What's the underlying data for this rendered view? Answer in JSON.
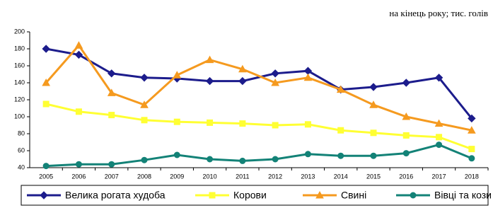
{
  "chart_data": {
    "type": "line",
    "subtitle": "на кінець року; тис. голів",
    "categories": [
      "2005",
      "2006",
      "2007",
      "2008",
      "2009",
      "2010",
      "2011",
      "2012",
      "2013",
      "2014",
      "2015",
      "2016",
      "2017",
      "2018"
    ],
    "ylim": [
      40,
      200
    ],
    "yticks": [
      40,
      60,
      80,
      100,
      120,
      140,
      160,
      180,
      200
    ],
    "grid": false,
    "series": [
      {
        "name": "Велика рогата худоба",
        "color": "#1c1c8c",
        "marker": "diamond",
        "values": [
          180,
          173,
          151,
          146,
          145,
          142,
          142,
          151,
          154,
          132,
          135,
          140,
          146,
          98
        ]
      },
      {
        "name": "Корови",
        "color": "#ffff33",
        "marker": "square",
        "values": [
          115,
          106,
          102,
          96,
          94,
          93,
          92,
          90,
          91,
          84,
          81,
          78,
          76,
          62
        ]
      },
      {
        "name": "Свині",
        "color": "#f59a1f",
        "marker": "triangle",
        "values": [
          140,
          184,
          128,
          114,
          149,
          167,
          156,
          140,
          146,
          132,
          114,
          100,
          92,
          84
        ]
      },
      {
        "name": "Вівці та кози",
        "color": "#138277",
        "marker": "circle",
        "values": [
          42,
          44,
          44,
          49,
          55,
          50,
          48,
          50,
          56,
          54,
          54,
          57,
          67,
          51
        ]
      }
    ]
  }
}
